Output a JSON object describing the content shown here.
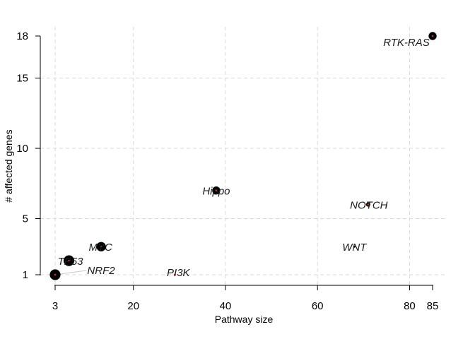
{
  "chart_data": {
    "type": "scatter",
    "xlabel": "Pathway size",
    "ylabel": "# affected genes",
    "xlim": [
      3,
      85
    ],
    "ylim": [
      1,
      18
    ],
    "x_ticks": [
      3,
      20,
      40,
      60,
      80,
      85
    ],
    "y_ticks": [
      1,
      5,
      10,
      15,
      18
    ],
    "grid": true,
    "points": [
      {
        "label": "RTK-RAS",
        "x": 85,
        "y": 18,
        "size": 6
      },
      {
        "label": "Hippo",
        "x": 38,
        "y": 7,
        "size": 6
      },
      {
        "label": "NOTCH",
        "x": 71,
        "y": 6,
        "size": 3
      },
      {
        "label": "WNT",
        "x": 68,
        "y": 3,
        "size": 1.2
      },
      {
        "label": "MYC",
        "x": 13,
        "y": 3,
        "size": 7
      },
      {
        "label": "TP53",
        "x": 6,
        "y": 2,
        "size": 8
      },
      {
        "label": "NRF2",
        "x": 3,
        "y": 1,
        "size": 8
      },
      {
        "label": "PI3K",
        "x": 29,
        "y": 1,
        "size": 1
      }
    ]
  }
}
